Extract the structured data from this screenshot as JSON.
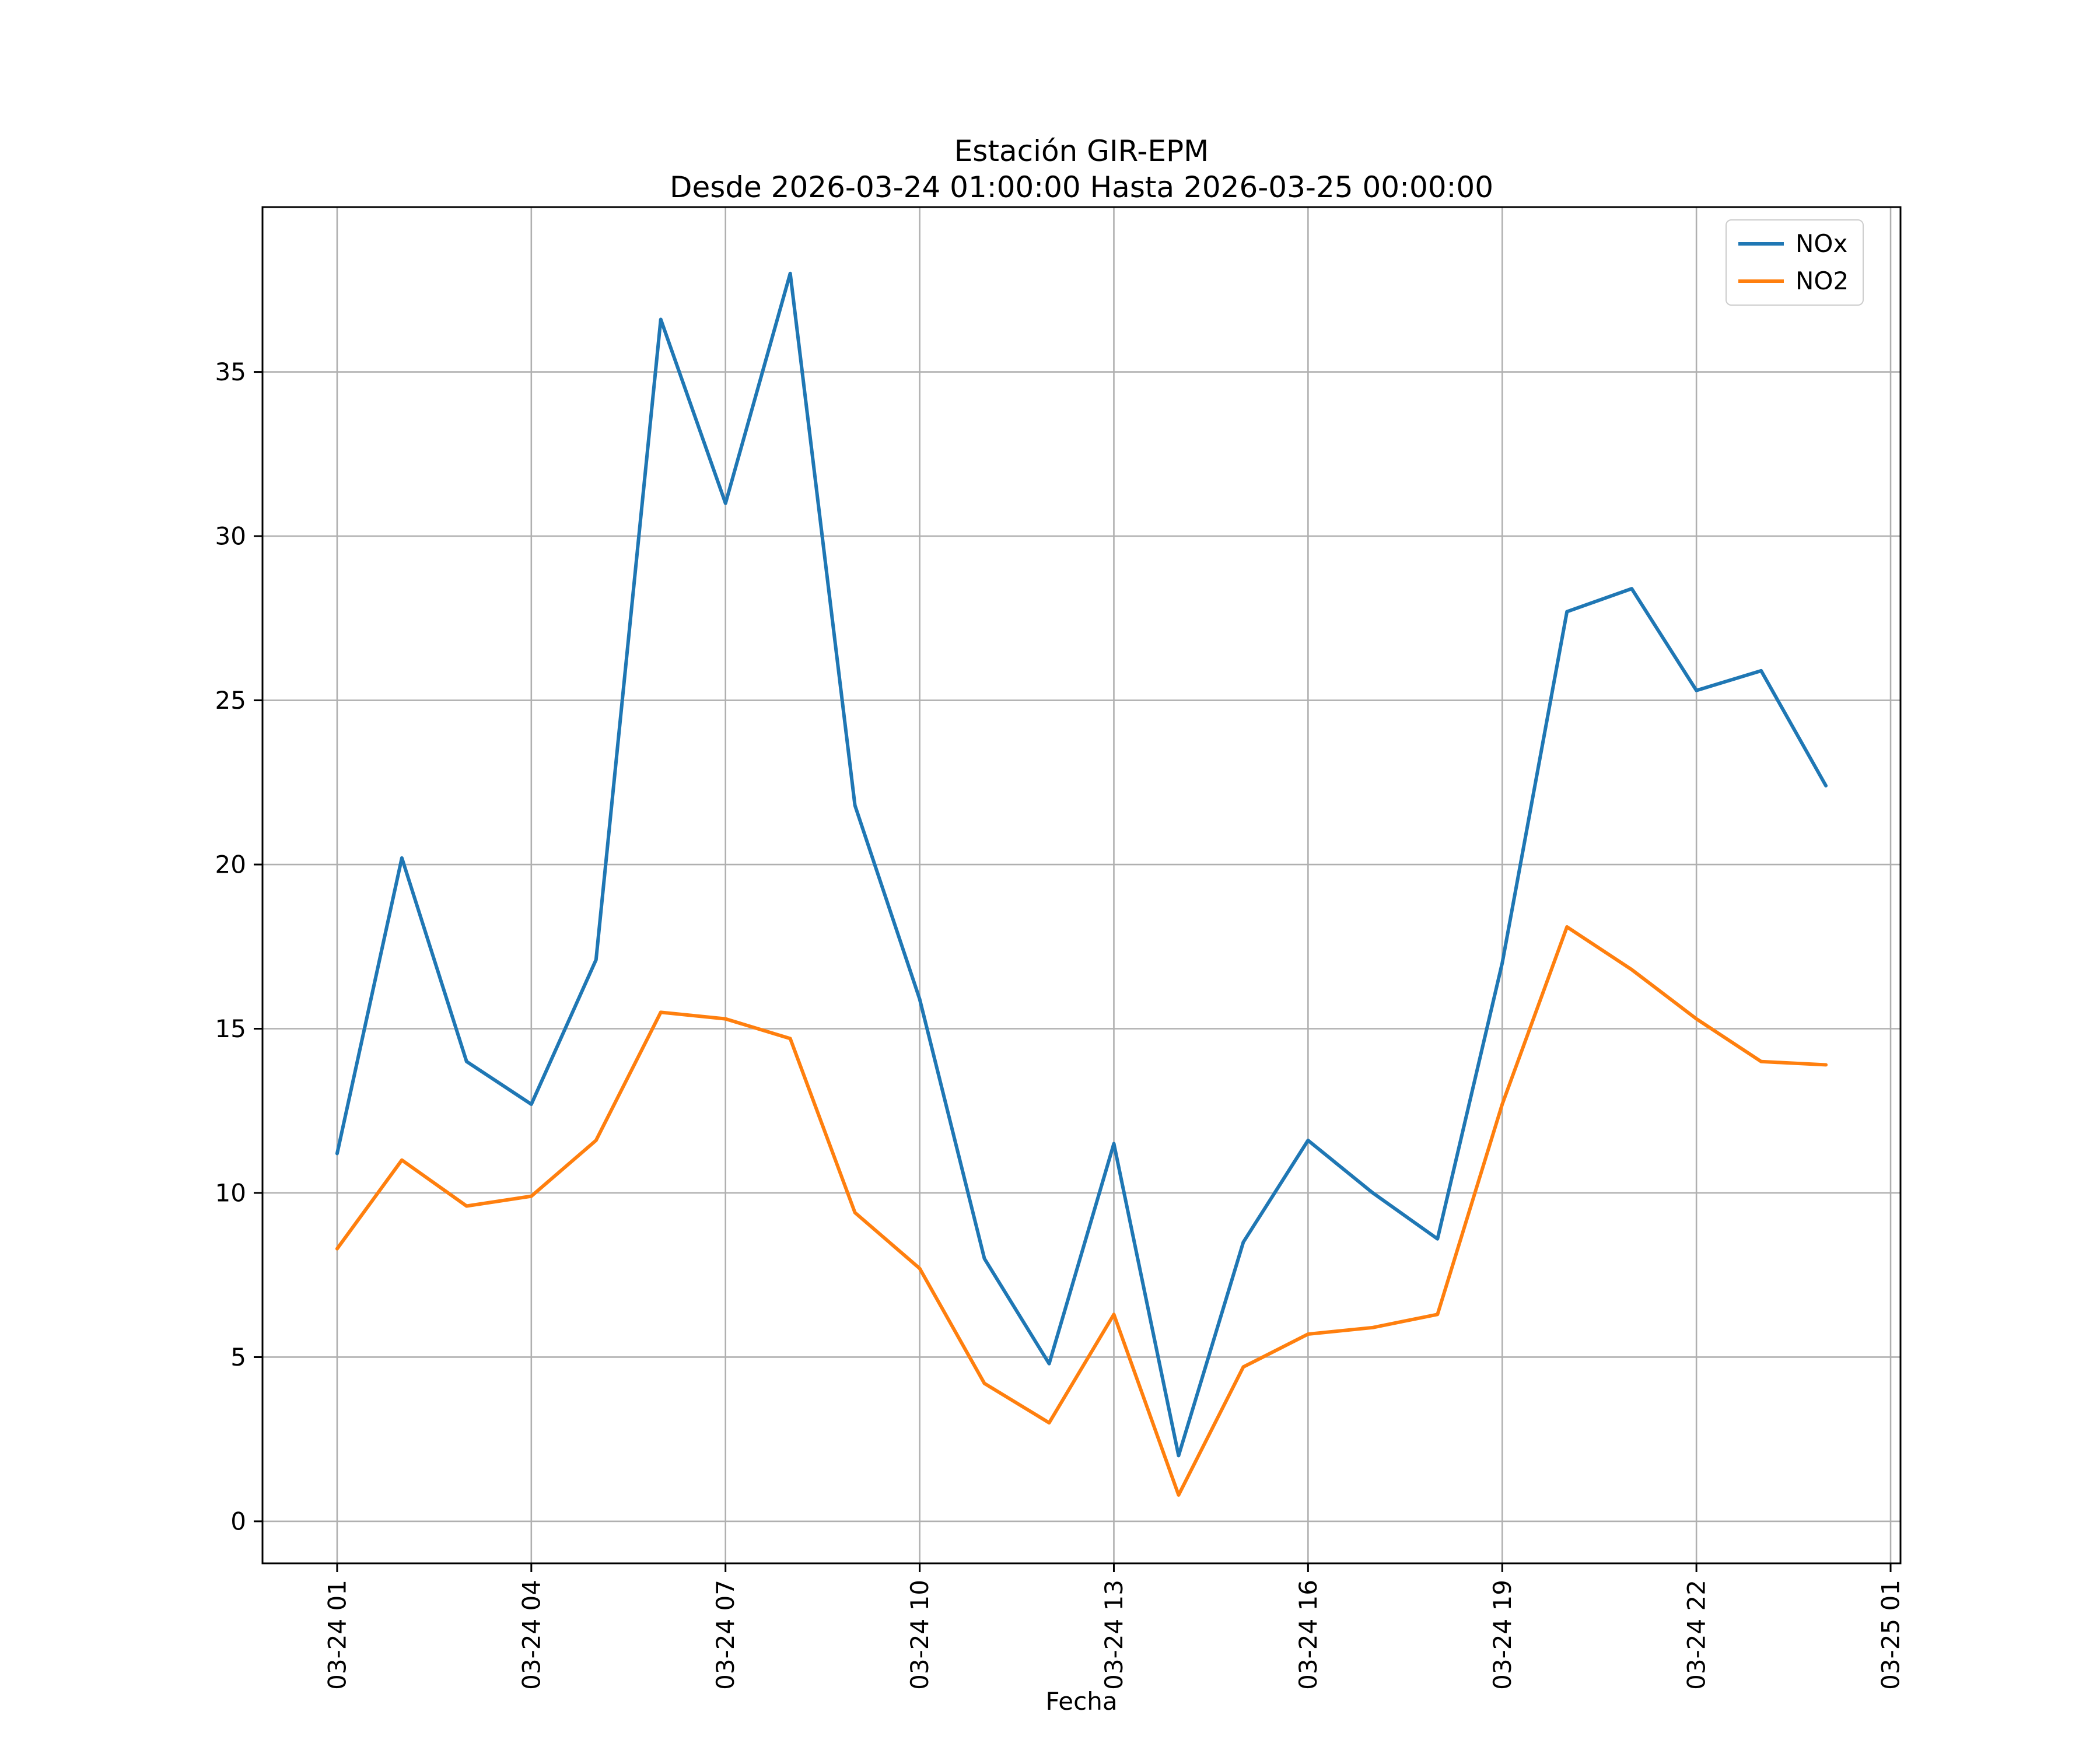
{
  "chart_data": {
    "type": "line",
    "title": "Estación GIR-EPM",
    "subtitle": "Desde 2026-03-24 01:00:00 Hasta 2026-03-25 00:00:00",
    "xlabel": "Fecha",
    "ylabel": "",
    "grid": true,
    "legend_position": "upper right",
    "background_color": "#ffffff",
    "grid_color": "#b0b0b0",
    "spine_color": "#000000",
    "xlim": [
      -0.153,
      25.153
    ],
    "ylim": [
      -1.28,
      40.02
    ],
    "x_hours": [
      1,
      2,
      3,
      4,
      5,
      6,
      7,
      8,
      9,
      10,
      11,
      12,
      13,
      14,
      15,
      16,
      17,
      18,
      19,
      20,
      21,
      22,
      23,
      24
    ],
    "x_tick_hours": [
      1,
      4,
      7,
      10,
      13,
      16,
      19,
      22,
      25
    ],
    "x_tick_labels": [
      "03-24 01",
      "03-24 04",
      "03-24 07",
      "03-24 10",
      "03-24 13",
      "03-24 16",
      "03-24 19",
      "03-24 22",
      "03-25 01"
    ],
    "y_ticks": [
      0,
      5,
      10,
      15,
      20,
      25,
      30,
      35
    ],
    "series": [
      {
        "name": "NOx",
        "color": "#1f77b4",
        "values": [
          11.2,
          20.2,
          14.0,
          12.7,
          17.1,
          36.6,
          31.0,
          38.0,
          21.8,
          15.9,
          8.0,
          4.8,
          11.5,
          2.0,
          8.5,
          11.6,
          10.0,
          8.6,
          17.0,
          27.7,
          28.4,
          25.3,
          25.9,
          22.4
        ]
      },
      {
        "name": "NO2",
        "color": "#ff7f0e",
        "values": [
          8.3,
          11.0,
          9.6,
          9.9,
          11.6,
          15.5,
          15.3,
          14.7,
          9.4,
          7.7,
          4.2,
          3.0,
          6.3,
          0.8,
          4.7,
          5.7,
          5.9,
          6.3,
          12.7,
          18.1,
          16.8,
          15.3,
          14.0,
          13.9
        ]
      }
    ]
  }
}
